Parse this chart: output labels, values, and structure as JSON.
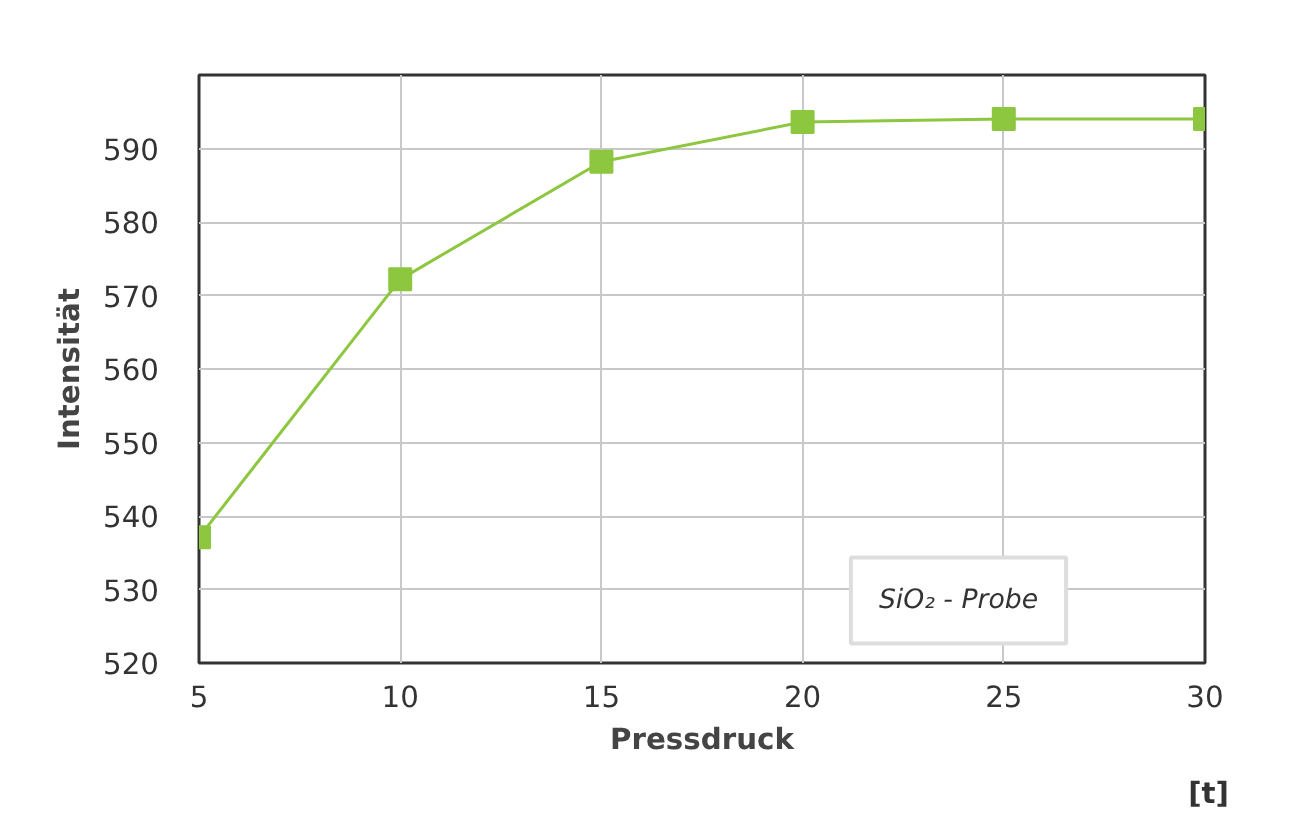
{
  "chart_data": {
    "type": "line",
    "xlabel": "Pressdruck",
    "ylabel": "Intensität",
    "x": [
      5,
      10,
      15,
      20,
      25,
      30
    ],
    "series": [
      {
        "color": "#8dc63f",
        "values": [
          537.1,
          572.2,
          588.2,
          593.6,
          594.0,
          594.0
        ]
      }
    ],
    "xlim": [
      5,
      30
    ],
    "xticks": [
      5,
      10,
      15,
      20,
      25,
      30
    ],
    "ylim": [
      520,
      600
    ],
    "yticks": [
      520,
      530,
      540,
      550,
      560,
      570,
      580,
      590
    ],
    "grid": true,
    "marker": "square",
    "line_style": "solid",
    "annotations": [
      "SiO₂ - Probe",
      "[t]"
    ]
  }
}
